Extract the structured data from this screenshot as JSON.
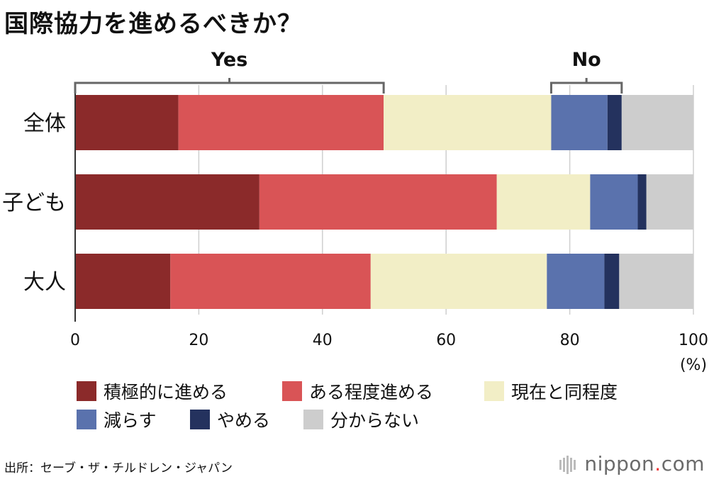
{
  "title": "国際協力を進めるべきか？",
  "source": "出所：セーブ・ザ・チルドレン・ジャパン",
  "brand": {
    "name": "nippon",
    "dot": ".",
    "suffix": "com"
  },
  "chart_data": {
    "type": "bar",
    "orientation": "horizontal",
    "stacked": true,
    "categories": [
      "全体",
      "子ども",
      "大人"
    ],
    "series": [
      {
        "name": "積極的に進める",
        "color": "#8b2a2a",
        "values": [
          16.7,
          29.8,
          15.4
        ]
      },
      {
        "name": "ある程度進める",
        "color": "#d95456",
        "values": [
          33.2,
          38.4,
          32.4
        ]
      },
      {
        "name": "現在と同程度",
        "color": "#f2eec6",
        "values": [
          27.1,
          15.1,
          28.5
        ]
      },
      {
        "name": "減らす",
        "color": "#5a72ad",
        "values": [
          9.1,
          7.7,
          9.3
        ]
      },
      {
        "name": "やめる",
        "color": "#24325e",
        "values": [
          2.3,
          1.4,
          2.4
        ]
      },
      {
        "name": "分からない",
        "color": "#cdcdcd",
        "values": [
          11.6,
          7.6,
          12.0
        ]
      }
    ],
    "xlim": [
      0,
      100
    ],
    "xticks": [
      "0",
      "20",
      "40",
      "60",
      "80",
      "100"
    ],
    "xunit": "(%)",
    "grid": true,
    "legend_position": "bottom",
    "annotations": [
      {
        "label": "Yes",
        "from": 0,
        "to": 49.9
      },
      {
        "label": "No",
        "from": 77.0,
        "to": 88.4
      }
    ]
  }
}
